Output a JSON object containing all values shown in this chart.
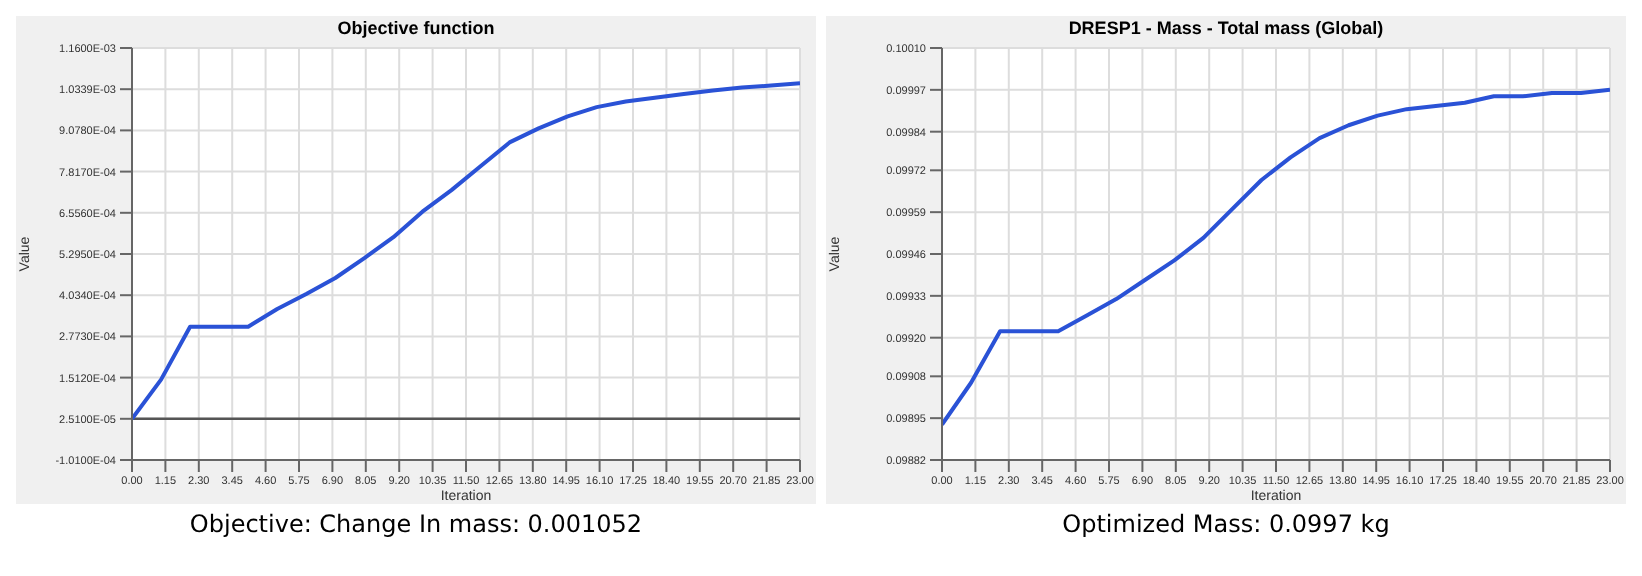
{
  "chart_data": [
    {
      "type": "line",
      "title": "Objective function",
      "xlabel": "Iteration",
      "ylabel": "Value",
      "annotations": [
        "Objective: Change In mass: 0.001052"
      ],
      "x": [
        0,
        1,
        2,
        3,
        4,
        5,
        6,
        7,
        8,
        9,
        10,
        11,
        12,
        13,
        14,
        15,
        16,
        17,
        18,
        19,
        20,
        21,
        22,
        23
      ],
      "series": [
        {
          "color": "#2a52d6",
          "values": [
            2.51e-05,
            0.000145,
            0.000307,
            0.000307,
            0.000307,
            0.000361,
            0.000407,
            0.000456,
            0.000517,
            0.000581,
            0.000659,
            0.000725,
            0.000798,
            0.000871,
            0.000914,
            0.000951,
            0.000979,
            0.000996,
            0.001008,
            0.001019,
            0.00103,
            0.001039,
            0.001045,
            0.001052
          ]
        }
      ],
      "xlim": [
        0,
        23
      ],
      "xticks": [
        {
          "value": 0,
          "label": "0.00"
        },
        {
          "value": 1.15,
          "label": "1.15"
        },
        {
          "value": 2.3,
          "label": "2.30"
        },
        {
          "value": 3.45,
          "label": "3.45"
        },
        {
          "value": 4.6,
          "label": "4.60"
        },
        {
          "value": 5.75,
          "label": "5.75"
        },
        {
          "value": 6.9,
          "label": "6.90"
        },
        {
          "value": 8.05,
          "label": "8.05"
        },
        {
          "value": 9.2,
          "label": "9.20"
        },
        {
          "value": 10.35,
          "label": "10.35"
        },
        {
          "value": 11.5,
          "label": "11.50"
        },
        {
          "value": 12.65,
          "label": "12.65"
        },
        {
          "value": 13.8,
          "label": "13.80"
        },
        {
          "value": 14.95,
          "label": "14.95"
        },
        {
          "value": 16.1,
          "label": "16.10"
        },
        {
          "value": 17.25,
          "label": "17.25"
        },
        {
          "value": 18.4,
          "label": "18.40"
        },
        {
          "value": 19.55,
          "label": "19.55"
        },
        {
          "value": 20.7,
          "label": "20.70"
        },
        {
          "value": 21.85,
          "label": "21.85"
        },
        {
          "value": 23,
          "label": "23.00"
        }
      ],
      "ylim": [
        -0.000101,
        0.00116
      ],
      "yticks": [
        {
          "value": -0.000101,
          "label": "-1.0100E-04"
        },
        {
          "value": 2.51e-05,
          "label": "2.5100E-05"
        },
        {
          "value": 0.0001512,
          "label": "1.5120E-04"
        },
        {
          "value": 0.0002773,
          "label": "2.7730E-04"
        },
        {
          "value": 0.0004034,
          "label": "4.0340E-04"
        },
        {
          "value": 0.0005295,
          "label": "5.2950E-04"
        },
        {
          "value": 0.0006556,
          "label": "6.5560E-04"
        },
        {
          "value": 0.0007817,
          "label": "7.8170E-04"
        },
        {
          "value": 0.0009078,
          "label": "9.0780E-04"
        },
        {
          "value": 0.0010339,
          "label": "1.0339E-03"
        },
        {
          "value": 0.00116,
          "label": "1.1600E-03"
        }
      ],
      "ref_lines": [
        {
          "axis": "y",
          "value": 2.51e-05,
          "color": "#555555"
        }
      ],
      "grid": true,
      "marker": "none",
      "line_style": "solid"
    },
    {
      "type": "line",
      "title": "DRESP1 - Mass - Total mass (Global)",
      "xlabel": "Iteration",
      "ylabel": "Value",
      "annotations": [
        "Optimized Mass: 0.0997 kg"
      ],
      "x": [
        0,
        1,
        2,
        3,
        4,
        5,
        6,
        7,
        8,
        9,
        10,
        11,
        12,
        13,
        14,
        15,
        16,
        17,
        18,
        19,
        20,
        21,
        22,
        23
      ],
      "series": [
        {
          "color": "#2a52d6",
          "values": [
            0.09893,
            0.09906,
            0.09922,
            0.09922,
            0.09922,
            0.09927,
            0.09932,
            0.09938,
            0.09944,
            0.09951,
            0.0996,
            0.09969,
            0.09976,
            0.09982,
            0.09986,
            0.09989,
            0.09991,
            0.09992,
            0.09993,
            0.09995,
            0.09995,
            0.09996,
            0.09996,
            0.09997
          ]
        }
      ],
      "xlim": [
        0,
        23
      ],
      "xticks": [
        {
          "value": 0,
          "label": "0.00"
        },
        {
          "value": 1.15,
          "label": "1.15"
        },
        {
          "value": 2.3,
          "label": "2.30"
        },
        {
          "value": 3.45,
          "label": "3.45"
        },
        {
          "value": 4.6,
          "label": "4.60"
        },
        {
          "value": 5.75,
          "label": "5.75"
        },
        {
          "value": 6.9,
          "label": "6.90"
        },
        {
          "value": 8.05,
          "label": "8.05"
        },
        {
          "value": 9.2,
          "label": "9.20"
        },
        {
          "value": 10.35,
          "label": "10.35"
        },
        {
          "value": 11.5,
          "label": "11.50"
        },
        {
          "value": 12.65,
          "label": "12.65"
        },
        {
          "value": 13.8,
          "label": "13.80"
        },
        {
          "value": 14.95,
          "label": "14.95"
        },
        {
          "value": 16.1,
          "label": "16.10"
        },
        {
          "value": 17.25,
          "label": "17.25"
        },
        {
          "value": 18.4,
          "label": "18.40"
        },
        {
          "value": 19.55,
          "label": "19.55"
        },
        {
          "value": 20.7,
          "label": "20.70"
        },
        {
          "value": 21.85,
          "label": "21.85"
        },
        {
          "value": 23,
          "label": "23.00"
        }
      ],
      "ylim": [
        0.09882,
        0.1001
      ],
      "yticks": [
        {
          "value": 0.09882,
          "label": "0.09882"
        },
        {
          "value": 0.09895,
          "label": "0.09895"
        },
        {
          "value": 0.09908,
          "label": "0.09908"
        },
        {
          "value": 0.0992,
          "label": "0.09920"
        },
        {
          "value": 0.09933,
          "label": "0.09933"
        },
        {
          "value": 0.09946,
          "label": "0.09946"
        },
        {
          "value": 0.09959,
          "label": "0.09959"
        },
        {
          "value": 0.09972,
          "label": "0.09972"
        },
        {
          "value": 0.09984,
          "label": "0.09984"
        },
        {
          "value": 0.09997,
          "label": "0.09997"
        },
        {
          "value": 0.1001,
          "label": "0.10010"
        }
      ],
      "grid": true,
      "marker": "none",
      "line_style": "solid"
    }
  ]
}
